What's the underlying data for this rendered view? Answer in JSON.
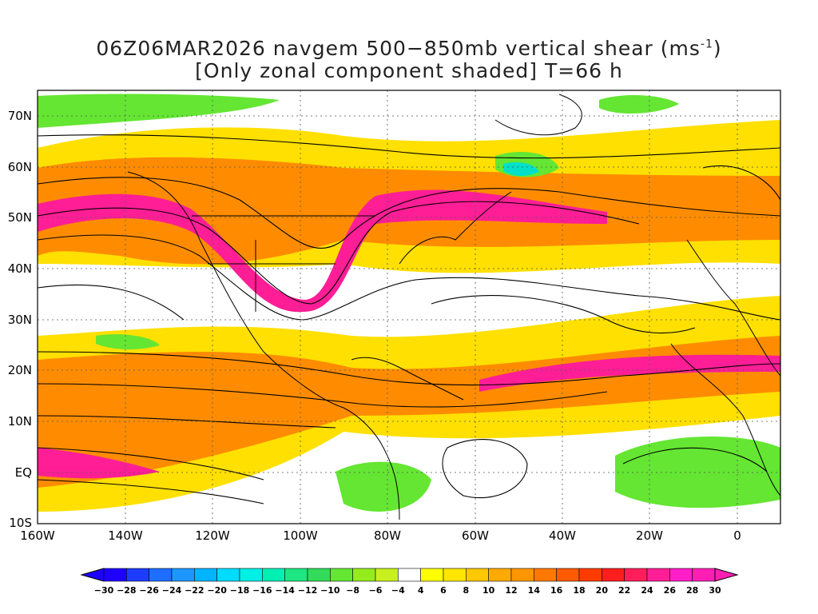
{
  "title_line1_prefix": "06Z06MAR2026 navgem 500−850mb vertical shear (ms",
  "title_line1_sup": "-1",
  "title_line1_suffix": ")",
  "title_line2": "[Only zonal component shaded] T=66 h",
  "lat_labels": [
    "70N",
    "60N",
    "50N",
    "40N",
    "30N",
    "20N",
    "10N",
    "EQ",
    "10S"
  ],
  "lon_labels": [
    "160W",
    "140W",
    "120W",
    "100W",
    "80W",
    "60W",
    "40W",
    "20W",
    "0"
  ],
  "colorbar": {
    "tick_labels": [
      "-30",
      "-28",
      "-26",
      "-24",
      "-22",
      "-20",
      "-18",
      "-16",
      "-14",
      "-12",
      "-10",
      "-8",
      "-6",
      "-4",
      "4",
      "6",
      "8",
      "10",
      "12",
      "14",
      "16",
      "18",
      "20",
      "22",
      "24",
      "26",
      "28",
      "30"
    ],
    "colors": [
      "#1e00ff",
      "#1e3cff",
      "#1e6eff",
      "#1e96ff",
      "#00b4ff",
      "#00dcff",
      "#00f0e6",
      "#00f0b4",
      "#1ee682",
      "#32dc5a",
      "#64e632",
      "#96eb1e",
      "#c8f01e",
      "#ffffff",
      "#ffff00",
      "#ffe600",
      "#ffc800",
      "#ffaa00",
      "#ff9600",
      "#ff7800",
      "#ff5a00",
      "#ff3c00",
      "#ff1e1e",
      "#ff1e5a",
      "#ff1e96",
      "#ff1ec8",
      "#ff1eb4"
    ]
  },
  "map_extent": {
    "lon": [
      -160,
      10
    ],
    "lat": [
      -10,
      75
    ]
  }
}
